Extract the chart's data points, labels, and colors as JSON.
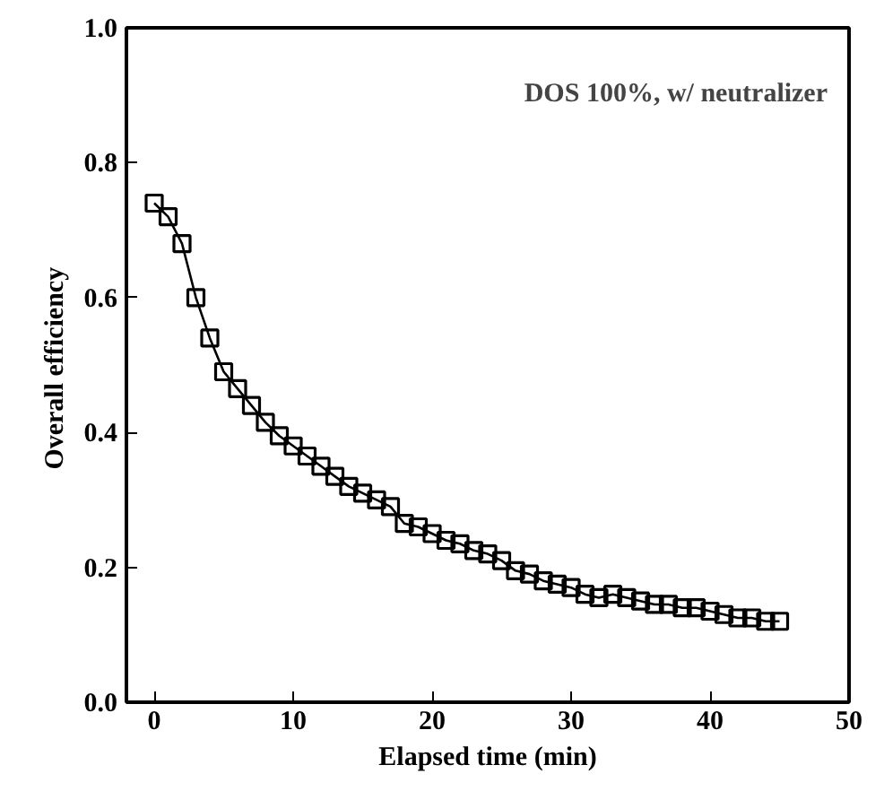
{
  "chart_data": {
    "type": "line",
    "xlabel": "Elapsed time (min)",
    "ylabel": "Overall  efficiency",
    "annotations": [
      "DOS 100%, w/ neutralizer"
    ],
    "x": [
      0,
      1,
      2,
      3,
      4,
      5,
      6,
      7,
      8,
      9,
      10,
      11,
      12,
      13,
      14,
      15,
      16,
      17,
      18,
      19,
      20,
      21,
      22,
      23,
      24,
      25,
      26,
      27,
      28,
      29,
      30,
      31,
      32,
      33,
      34,
      35,
      36,
      37,
      38,
      39,
      40,
      41,
      42,
      43,
      44,
      45
    ],
    "series": [
      {
        "color": "#000000",
        "values": [
          0.74,
          0.72,
          0.68,
          0.6,
          0.54,
          0.49,
          0.465,
          0.44,
          0.415,
          0.395,
          0.38,
          0.365,
          0.35,
          0.335,
          0.32,
          0.31,
          0.3,
          0.29,
          0.265,
          0.26,
          0.25,
          0.24,
          0.235,
          0.225,
          0.22,
          0.21,
          0.195,
          0.19,
          0.18,
          0.175,
          0.17,
          0.16,
          0.155,
          0.16,
          0.155,
          0.15,
          0.145,
          0.145,
          0.14,
          0.14,
          0.135,
          0.13,
          0.125,
          0.125,
          0.12,
          0.12
        ]
      }
    ],
    "xlim": [
      -2,
      50
    ],
    "ylim": [
      0,
      1
    ],
    "xticks": [
      0,
      10,
      20,
      30,
      40,
      50
    ],
    "yticks": [
      {
        "value": 0,
        "label": "0.0"
      },
      {
        "value": 0.2,
        "label": "0.2"
      },
      {
        "value": 0.4,
        "label": "0.4"
      },
      {
        "value": 0.6,
        "label": "0.6"
      },
      {
        "value": 0.8,
        "label": "0.8"
      },
      {
        "value": 1,
        "label": "1.0"
      }
    ],
    "marker": "square",
    "line_style": "solid",
    "grid": false
  }
}
